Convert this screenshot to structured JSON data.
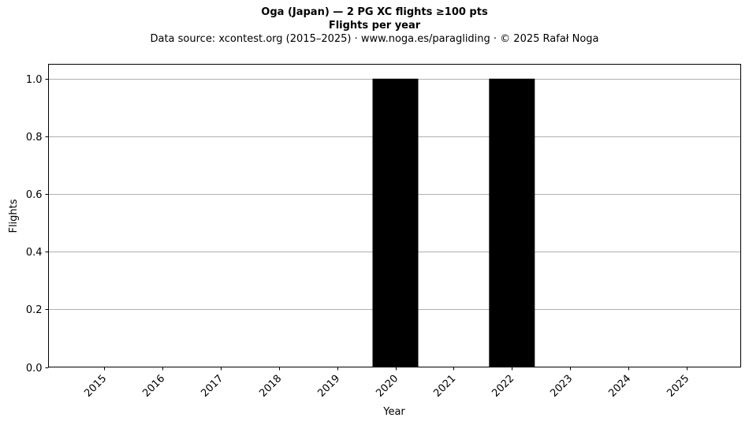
{
  "header": {
    "title": "Oga (Japan)  —  2 PG XC flights ≥100 pts",
    "subtitle": "Flights per year",
    "source": "Data source: xcontest.org (2015–2025)  ·  www.noga.es/paragliding  ·  © 2025 Rafał Noga"
  },
  "chart_data": {
    "type": "bar",
    "title": "Oga (Japan)  —  2 PG XC flights ≥100 pts",
    "subtitle": "Flights per year",
    "xlabel": "Year",
    "ylabel": "Flights",
    "categories": [
      "2015",
      "2016",
      "2017",
      "2018",
      "2019",
      "2020",
      "2021",
      "2022",
      "2023",
      "2024",
      "2025"
    ],
    "values": [
      0,
      0,
      0,
      0,
      0,
      1,
      0,
      1,
      0,
      0,
      0
    ],
    "ylim": [
      0,
      1.05
    ],
    "yticks": [
      "0.0",
      "0.2",
      "0.4",
      "0.6",
      "0.8",
      "1.0"
    ],
    "grid": "horizontal",
    "bar_color": "#000000",
    "grid_color": "#b0b0b0"
  }
}
